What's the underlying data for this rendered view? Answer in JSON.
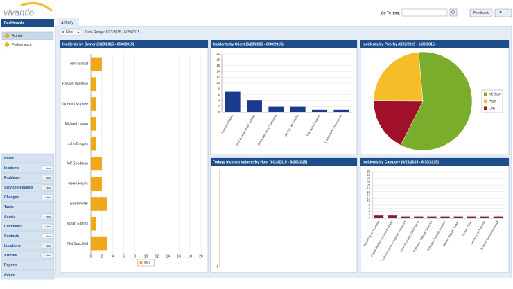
{
  "header": {
    "logo": "vivantio",
    "goto_label": "Go To Item:",
    "feedback": "Feedback"
  },
  "sidebar": {
    "section": "Dashboards",
    "dashboards": [
      "Activity",
      "Performance"
    ],
    "nav": [
      {
        "label": "Home"
      },
      {
        "label": "Incidents",
        "action": "+ New"
      },
      {
        "label": "Problems",
        "action": "+ New"
      },
      {
        "label": "Service Requests",
        "action": "+ New"
      },
      {
        "label": "Changes",
        "action": "+ New"
      },
      {
        "label": "Tasks"
      },
      {
        "label": "Assets",
        "action": "+ New"
      },
      {
        "label": "Customers",
        "action": "+ New"
      },
      {
        "label": "Contacts",
        "action": "+ New"
      },
      {
        "label": "Locations",
        "action": "+ New"
      },
      {
        "label": "Articles",
        "action": "+ New"
      },
      {
        "label": "Reports"
      },
      {
        "label": "Admin"
      }
    ]
  },
  "tab": "Activity",
  "filter": {
    "button": "Filter",
    "date_range": "Date Range:  6/23/2015 - 6/29/2015"
  },
  "chart_data": [
    {
      "type": "hbar",
      "title": "Incidents by Owner (6/23/2015 - 6/30/2015)",
      "categories": [
        "Terry Soldat",
        "Russell Wiltshire",
        "Quentin Mcphee",
        "Michael Hogan",
        "John Bridges",
        "Jeff Goodman",
        "Helen Heyns",
        "Elliot Porter",
        "Adrian Eames",
        "Not Specified"
      ],
      "series": [
        {
          "name": "data",
          "color": "#f0a818",
          "values": [
            2,
            1,
            1,
            1,
            1,
            2,
            2,
            3,
            1,
            3
          ]
        }
      ],
      "xlim": [
        0,
        20
      ],
      "xticks": [
        0,
        2,
        4,
        6,
        8,
        10,
        12,
        14,
        16,
        18,
        20
      ],
      "grid": true,
      "legend": "bottom"
    },
    {
      "type": "bar",
      "title": "Incidents by Client (6/23/2015 - 6/30/2015)",
      "categories": [
        "Lakeside Marine",
        "Red Rooftop Hotel Lighting",
        "Black Belt Story Publishing",
        "Oil Pain and Media",
        "Star Wars Creative",
        "Catastrophe Productions"
      ],
      "values": [
        7,
        4,
        2,
        2,
        1,
        1
      ],
      "color": "#1a3a8c",
      "ylim": [
        0,
        20
      ],
      "yticks": [
        0,
        2,
        4,
        6,
        8,
        10,
        12,
        14,
        16,
        18,
        20
      ],
      "grid": true
    },
    {
      "type": "pie",
      "title": "Incidents by Priority (6/23/2015 - 6/30/2015)",
      "categories": [
        "Medium",
        "High",
        "Low"
      ],
      "values": [
        10,
        4,
        3
      ],
      "colors": [
        "#7aad2c",
        "#f5bd2a",
        "#a0102a"
      ],
      "legend": "right"
    },
    {
      "type": "line",
      "title": "Todays Incident Volume By Hour (6/23/2015 - 6/30/2015)",
      "x": [],
      "values": [],
      "yticks": [
        0
      ]
    },
    {
      "type": "bar",
      "title": "Incidents by Category (6/23/2015 - 6/30/2015)",
      "categories": [
        "Reporting on Incidents",
        "E-mail: Mailbox Access Problem",
        "User Accounts: Forgotten Password",
        "User Accounts: Can't log in",
        "Software: Outlook Calendar",
        "Software: Internet Browser",
        "Server: Report Outage",
        "Server: Other",
        "Server: Can't access",
        "Printing: Mechanical Fault"
      ],
      "values": [
        2,
        2,
        1,
        1,
        1,
        1,
        1,
        1,
        1,
        1
      ],
      "color": "#8b1a2b",
      "ylim": [
        0,
        28
      ],
      "yticks": [
        0,
        2,
        4,
        6,
        8,
        10,
        12,
        14,
        16,
        18,
        20,
        22,
        24,
        26,
        28
      ],
      "grid": true
    }
  ]
}
